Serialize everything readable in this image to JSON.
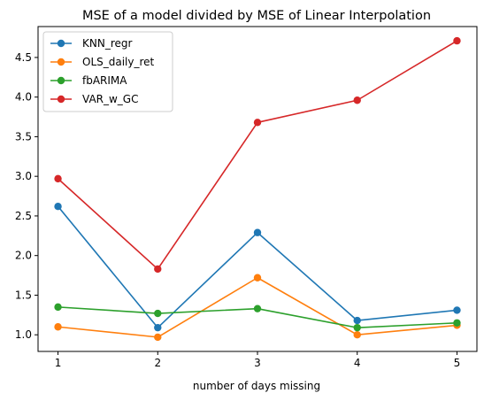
{
  "chart_data": {
    "type": "line",
    "title": "MSE of a model divided by MSE of Linear Interpolation",
    "xlabel": "number of days missing",
    "ylabel": "",
    "x": [
      1,
      2,
      3,
      4,
      5
    ],
    "xticks": [
      "1",
      "2",
      "3",
      "4",
      "5"
    ],
    "yticks": [
      "1.0",
      "1.5",
      "2.0",
      "2.5",
      "3.0",
      "3.5",
      "4.0",
      "4.5"
    ],
    "xlim": [
      0.8,
      5.2
    ],
    "ylim": [
      0.79,
      4.89
    ],
    "grid": false,
    "legend_position": "upper-left",
    "series": [
      {
        "name": "KNN_regr",
        "color": "#1f77b4",
        "values": [
          2.62,
          1.09,
          2.29,
          1.18,
          1.31
        ]
      },
      {
        "name": "OLS_daily_ret",
        "color": "#ff7f0e",
        "values": [
          1.1,
          0.97,
          1.72,
          1.0,
          1.12
        ]
      },
      {
        "name": "fbARIMA",
        "color": "#2ca02c",
        "values": [
          1.35,
          1.27,
          1.33,
          1.09,
          1.15
        ]
      },
      {
        "name": "VAR_w_GC",
        "color": "#d62728",
        "values": [
          2.97,
          1.83,
          3.68,
          3.96,
          4.71
        ]
      }
    ]
  }
}
